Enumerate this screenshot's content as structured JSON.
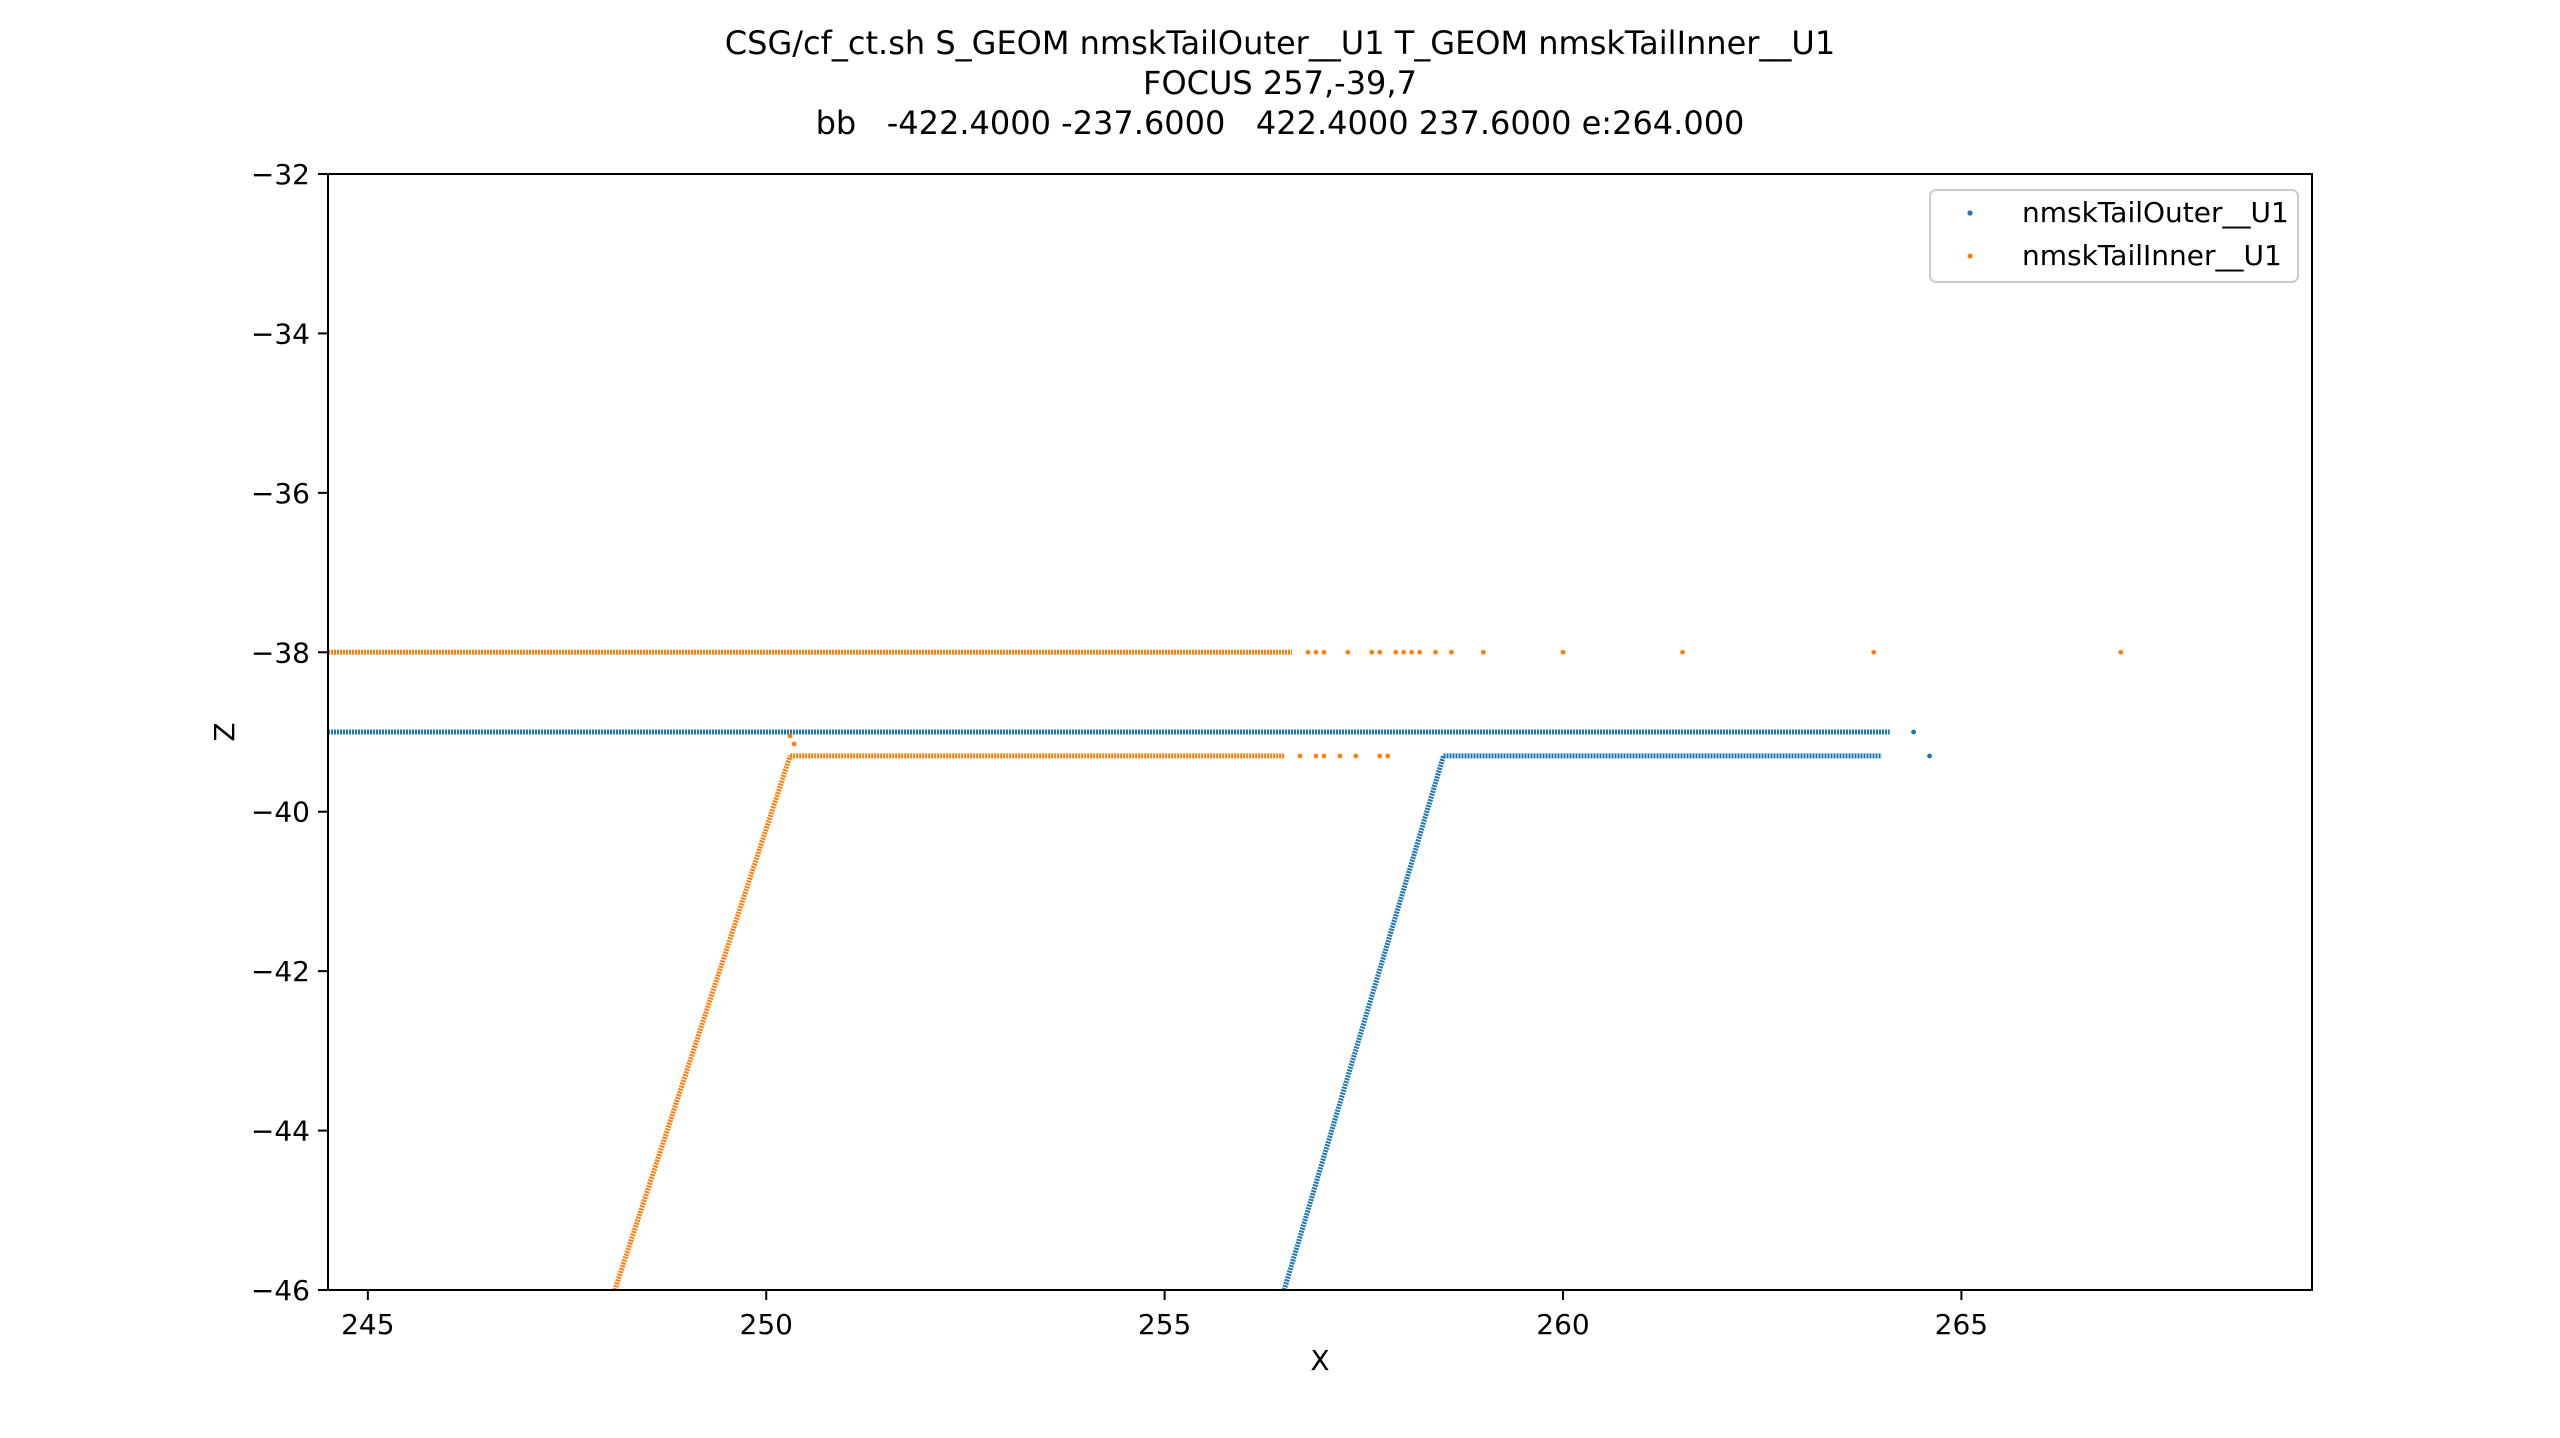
{
  "chart_data": {
    "type": "scatter",
    "title_lines": [
      "CSG/cf_ct.sh S_GEOM nmskTailOuter__U1 T_GEOM nmskTailInner__U1",
      "FOCUS 257,-39,7",
      "bb   -422.4000 -237.6000   422.4000 237.6000 e:264.000"
    ],
    "xlabel": "X",
    "ylabel": "Z",
    "xlim": [
      244.5,
      269.4
    ],
    "ylim": [
      -46,
      -32
    ],
    "xticks": [
      245,
      250,
      255,
      260,
      265
    ],
    "yticks": [
      -32,
      -34,
      -36,
      -38,
      -40,
      -42,
      -44,
      -46
    ],
    "grid": false,
    "legend_position": "top-right",
    "series": [
      {
        "name": "nmskTailOuter__U1",
        "color": "#1f77b4",
        "segments": [
          {
            "from": [
              244.5,
              -39.0
            ],
            "to": [
              264.1,
              -39.0
            ]
          },
          {
            "from": [
              256.5,
              -46.0
            ],
            "to": [
              258.5,
              -39.3
            ]
          },
          {
            "from": [
              258.5,
              -39.3
            ],
            "to": [
              264.0,
              -39.3
            ]
          }
        ],
        "points": [
          [
            264.4,
            -39.0
          ],
          [
            264.6,
            -39.3
          ]
        ]
      },
      {
        "name": "nmskTailInner__U1",
        "color": "#ff7f0e",
        "segments": [
          {
            "from": [
              244.5,
              -38.0
            ],
            "to": [
              256.6,
              -38.0
            ]
          },
          {
            "from": [
              248.1,
              -46.0
            ],
            "to": [
              250.3,
              -39.3
            ]
          },
          {
            "from": [
              250.3,
              -39.3
            ],
            "to": [
              256.5,
              -39.3
            ]
          }
        ],
        "points": [
          [
            250.3,
            -39.05
          ],
          [
            250.35,
            -39.15
          ],
          [
            256.8,
            -38.0
          ],
          [
            256.9,
            -38.0
          ],
          [
            257.0,
            -38.0
          ],
          [
            257.3,
            -38.0
          ],
          [
            257.6,
            -38.0
          ],
          [
            257.7,
            -38.0
          ],
          [
            257.9,
            -38.0
          ],
          [
            258.0,
            -38.0
          ],
          [
            258.1,
            -38.0
          ],
          [
            258.2,
            -38.0
          ],
          [
            258.4,
            -38.0
          ],
          [
            258.6,
            -38.0
          ],
          [
            259.0,
            -38.0
          ],
          [
            260.0,
            -38.0
          ],
          [
            261.5,
            -38.0
          ],
          [
            263.9,
            -38.0
          ],
          [
            267.0,
            -38.0
          ],
          [
            256.7,
            -39.3
          ],
          [
            256.9,
            -39.3
          ],
          [
            257.0,
            -39.3
          ],
          [
            257.2,
            -39.3
          ],
          [
            257.4,
            -39.3
          ],
          [
            257.7,
            -39.3
          ],
          [
            257.8,
            -39.3
          ]
        ]
      }
    ]
  }
}
